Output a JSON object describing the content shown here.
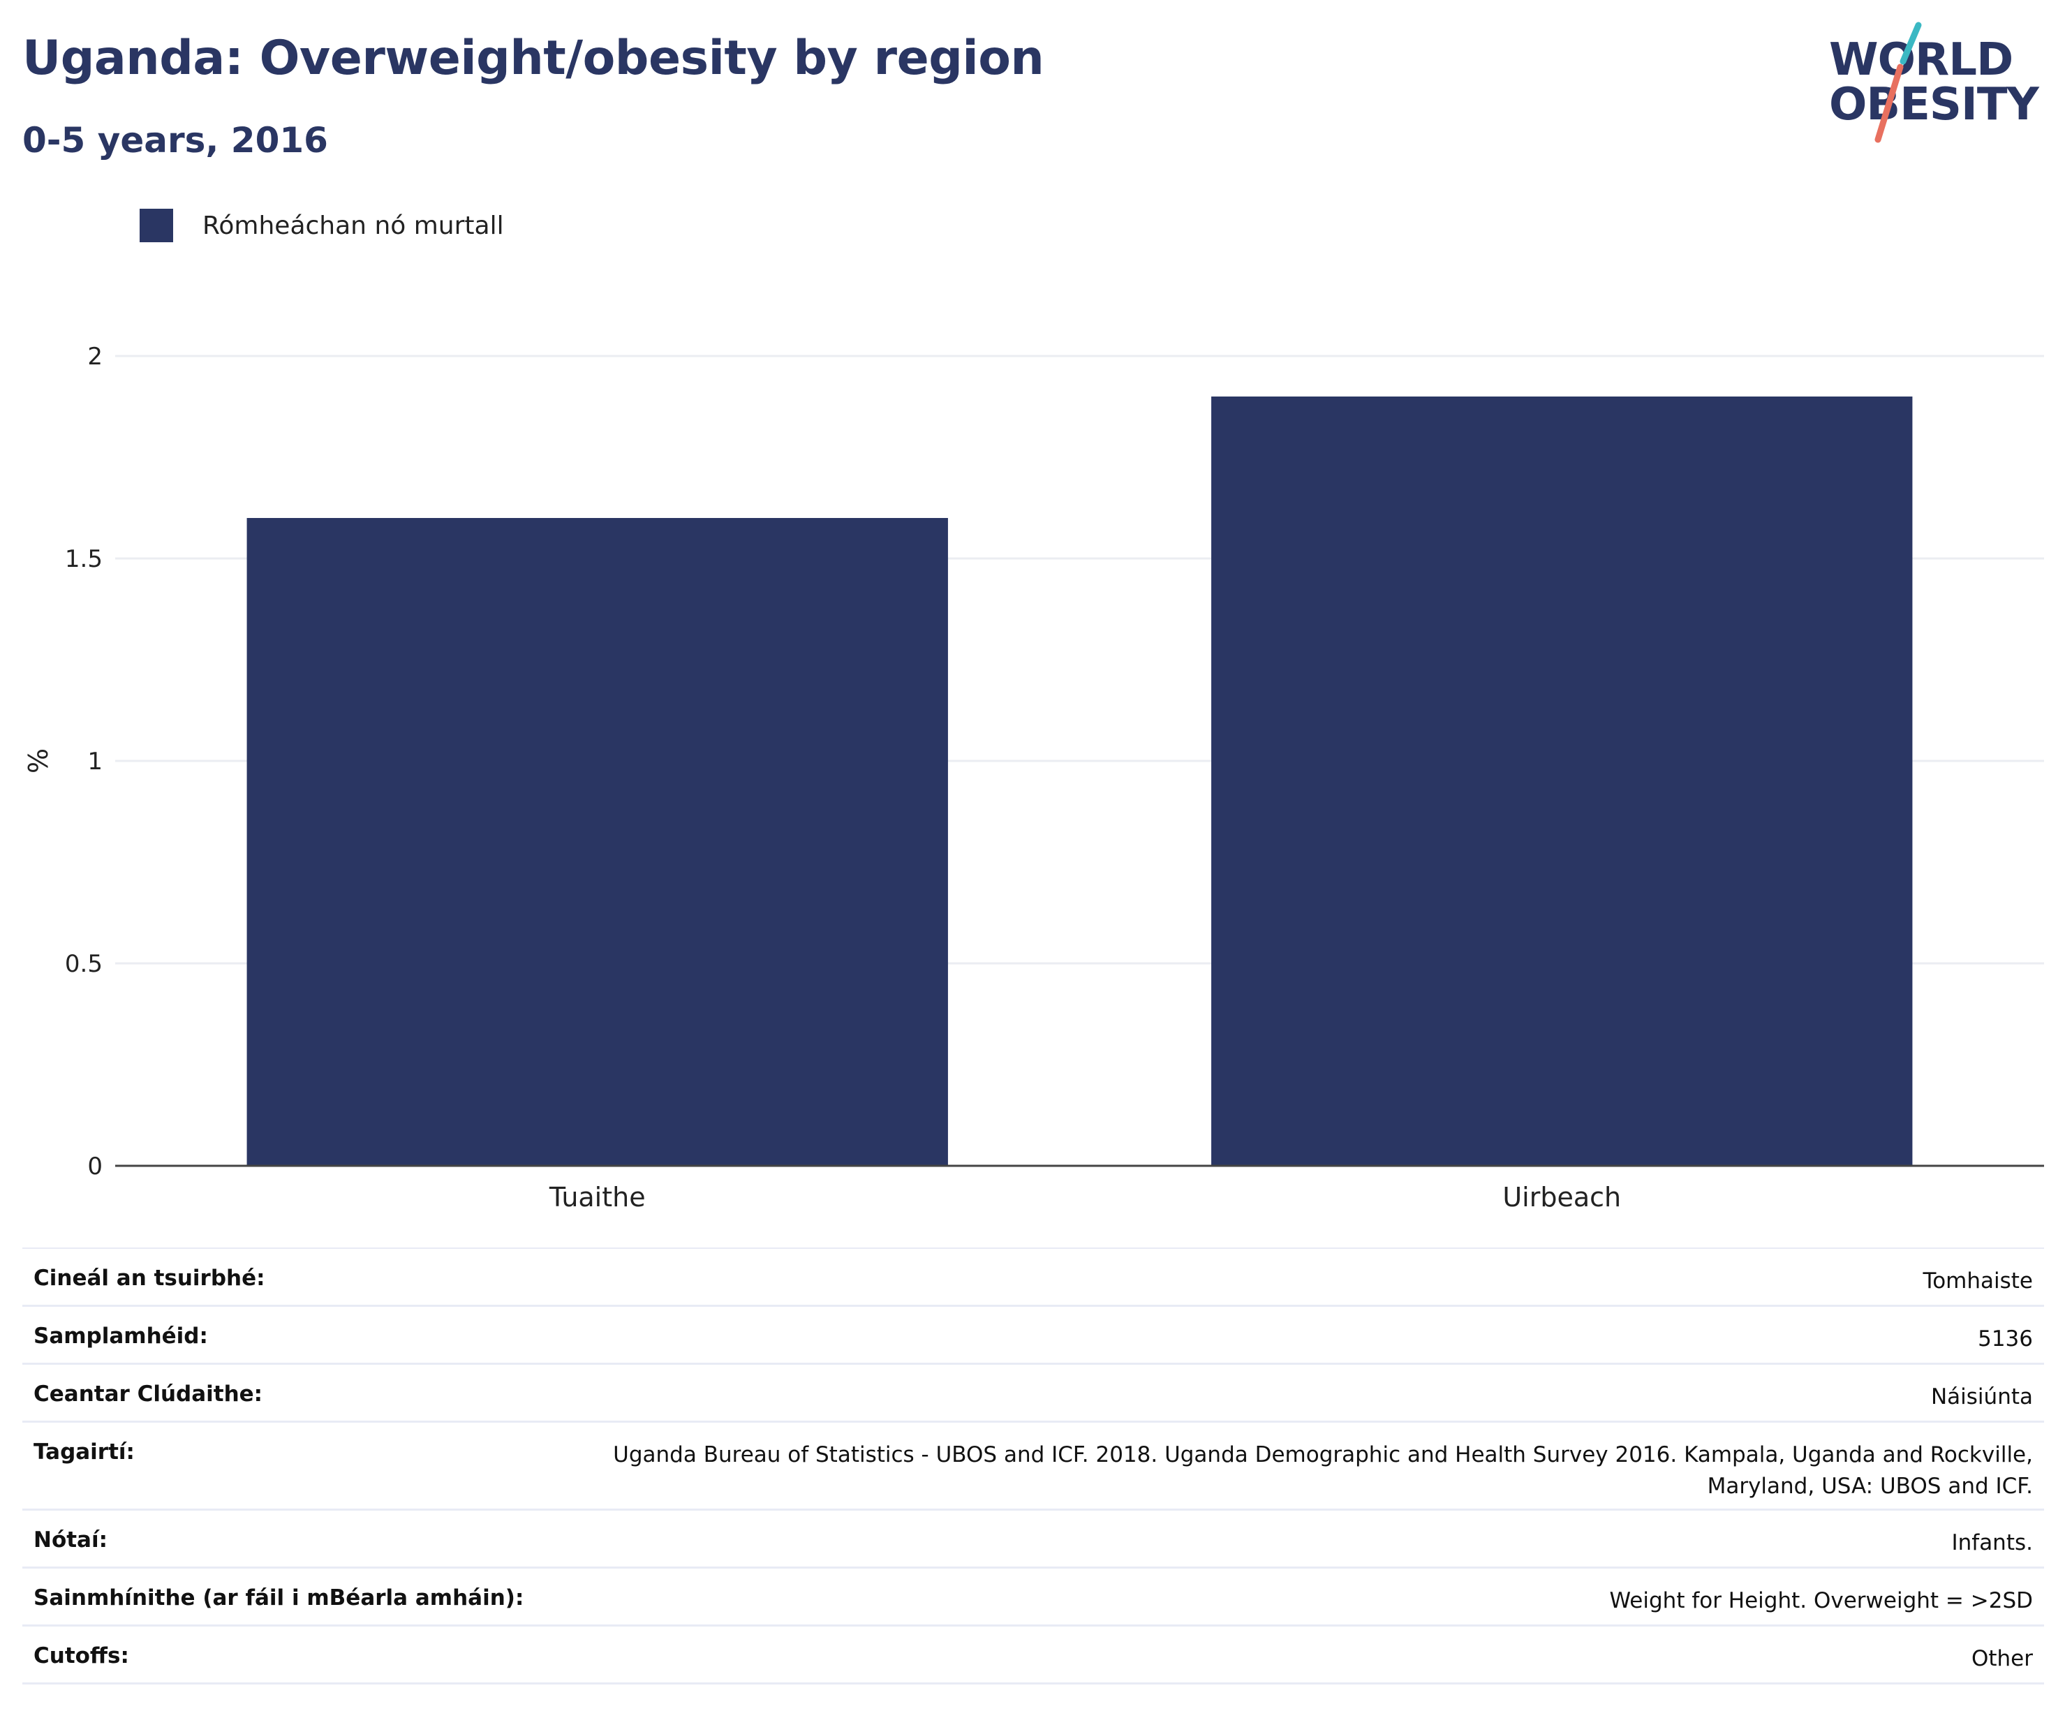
{
  "header": {
    "title": "Uganda: Overweight/obesity by region",
    "subtitle": "0-5 years, 2016"
  },
  "logo": {
    "line1": "WORLD",
    "line2": "OBESITY",
    "accent_teal": "#3bb8c3",
    "accent_coral": "#e8705f"
  },
  "legend": {
    "label": "Rómheáchan nó murtall",
    "color": "#2a3663"
  },
  "chart_data": {
    "type": "bar",
    "categories": [
      "Tuaithe",
      "Uirbeach"
    ],
    "series": [
      {
        "name": "Rómheáchan nó murtall",
        "values": [
          1.6,
          1.9
        ],
        "color": "#2a3663"
      }
    ],
    "ylabel": "%",
    "xlabel": "",
    "ylim": [
      0,
      2
    ],
    "yticks": [
      "0",
      "0.5",
      "1",
      "1.5",
      "2"
    ],
    "grid": true,
    "legend_position": "top-left"
  },
  "info_table": [
    {
      "key": "Cineál an tsuirbhé:",
      "value": "Tomhaiste"
    },
    {
      "key": "Samplamhéid:",
      "value": "5136"
    },
    {
      "key": "Ceantar Clúdaithe:",
      "value": "Náisiúnta"
    },
    {
      "key": "Tagairtí:",
      "value": "Uganda Bureau of Statistics - UBOS and ICF. 2018. Uganda Demographic and Health Survey 2016. Kampala, Uganda and Rockville, Maryland, USA: UBOS and ICF."
    },
    {
      "key": "Nótaí:",
      "value": "Infants."
    },
    {
      "key": "Sainmhínithe (ar fáil i mBéarla amháin):",
      "value": "Weight for Height. Overweight = >2SD"
    },
    {
      "key": "Cutoffs:",
      "value": "Other"
    }
  ]
}
